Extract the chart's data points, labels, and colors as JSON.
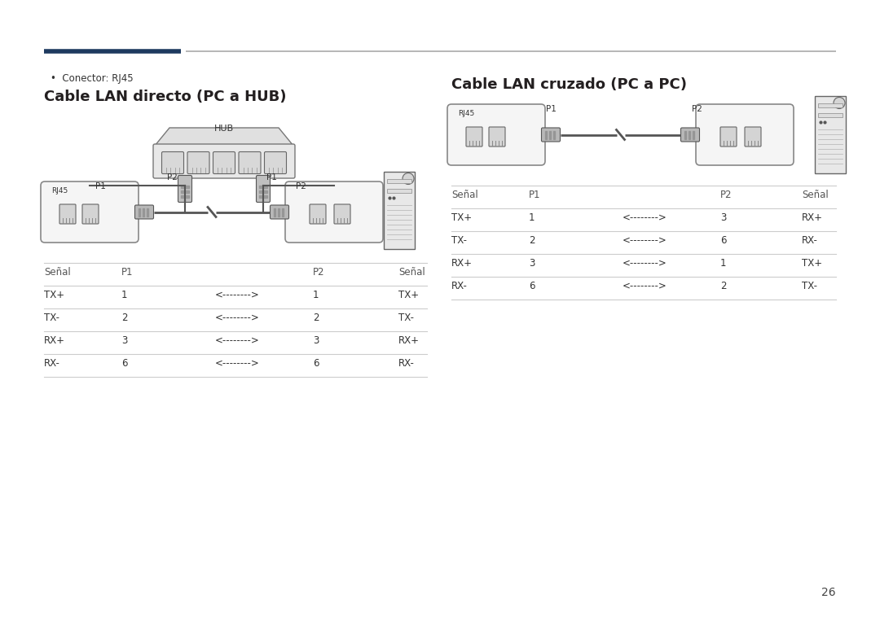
{
  "bg_color": "#ffffff",
  "text_color": "#231f20",
  "line_color": "#cccccc",
  "header_line_dark": "#1e3a5f",
  "header_line_light": "#aaaaaa",
  "diagram_line": "#555555",
  "diagram_fill_light": "#f0f0f0",
  "diagram_fill_dark": "#d0d0d0",
  "bullet_text": "Conector: RJ45",
  "title_left": "Cable LAN directo (PC a HUB)",
  "title_right": "Cable LAN cruzado (PC a PC)",
  "table_left_headers": [
    "Señal",
    "P1",
    "",
    "P2",
    "Señal"
  ],
  "table_left_rows": [
    [
      "TX+",
      "1",
      "<-------->",
      "1",
      "TX+"
    ],
    [
      "TX-",
      "2",
      "<-------->",
      "2",
      "TX-"
    ],
    [
      "RX+",
      "3",
      "<-------->",
      "3",
      "RX+"
    ],
    [
      "RX-",
      "6",
      "<-------->",
      "6",
      "RX-"
    ]
  ],
  "table_right_headers": [
    "Señal",
    "P1",
    "",
    "P2",
    "Señal"
  ],
  "table_right_rows": [
    [
      "TX+",
      "1",
      "<-------->",
      "3",
      "RX+"
    ],
    [
      "TX-",
      "2",
      "<-------->",
      "6",
      "RX-"
    ],
    [
      "RX+",
      "3",
      "<-------->",
      "1",
      "TX+"
    ],
    [
      "RX-",
      "6",
      "<-------->",
      "2",
      "TX-"
    ]
  ],
  "page_number": "26"
}
